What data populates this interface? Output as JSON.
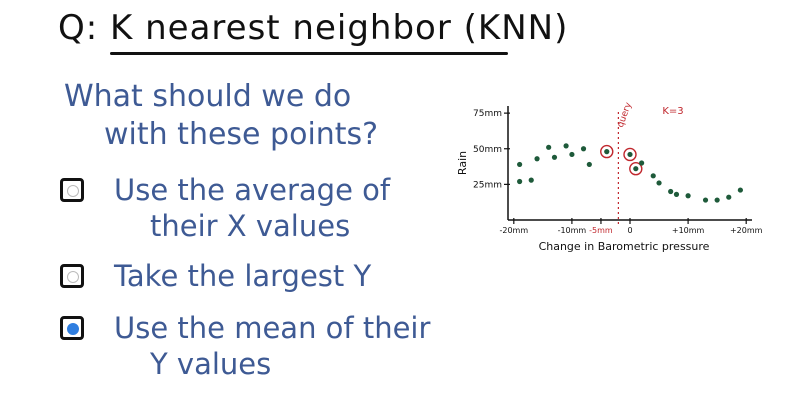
{
  "title": "Q: K nearest neighbor (KNN)",
  "question": {
    "line1": "What should we do",
    "line2": "with these points?"
  },
  "options": [
    {
      "line1": "Use the average of",
      "line2": "their X values",
      "selected": false
    },
    {
      "line1": "Take the largest Y",
      "line2": "",
      "selected": false
    },
    {
      "line1": "Use the mean of their",
      "line2": "Y values",
      "selected": true
    }
  ],
  "colors": {
    "ink": "#111111",
    "question_blue": "#3e5a94",
    "point_green": "#1e5a3a",
    "annotation_red": "#c0272d",
    "selected_radio": "#2f7ee0"
  },
  "chart_data": {
    "type": "scatter",
    "ylabel": "Rain",
    "xlabel": "Change in Barometric pressure",
    "x_tick_labels": [
      "-20mm",
      "-10mm",
      "-5mm",
      "0",
      "+10mm",
      "+20mm"
    ],
    "x_ticks": [
      -20,
      -10,
      -5,
      0,
      10,
      20
    ],
    "y_tick_labels": [
      "25mm",
      "50mm",
      "75mm"
    ],
    "y_ticks": [
      25,
      50,
      75
    ],
    "xlim": [
      -21,
      21
    ],
    "ylim": [
      0,
      80
    ],
    "query_label": "query",
    "query_x": -2,
    "k_label": "K=3",
    "points": [
      {
        "x": -19,
        "y": 27
      },
      {
        "x": -19,
        "y": 39
      },
      {
        "x": -17,
        "y": 28
      },
      {
        "x": -16,
        "y": 43
      },
      {
        "x": -14,
        "y": 51
      },
      {
        "x": -13,
        "y": 44
      },
      {
        "x": -11,
        "y": 52
      },
      {
        "x": -10,
        "y": 46
      },
      {
        "x": -8,
        "y": 50
      },
      {
        "x": -7,
        "y": 39
      },
      {
        "x": -4,
        "y": 48
      },
      {
        "x": 0,
        "y": 46
      },
      {
        "x": 1,
        "y": 36
      },
      {
        "x": 2,
        "y": 40
      },
      {
        "x": 4,
        "y": 31
      },
      {
        "x": 5,
        "y": 26
      },
      {
        "x": 7,
        "y": 20
      },
      {
        "x": 8,
        "y": 18
      },
      {
        "x": 10,
        "y": 17
      },
      {
        "x": 13,
        "y": 14
      },
      {
        "x": 15,
        "y": 14
      },
      {
        "x": 17,
        "y": 16
      },
      {
        "x": 19,
        "y": 21
      }
    ],
    "nearest_indices": [
      10,
      11,
      12
    ]
  }
}
